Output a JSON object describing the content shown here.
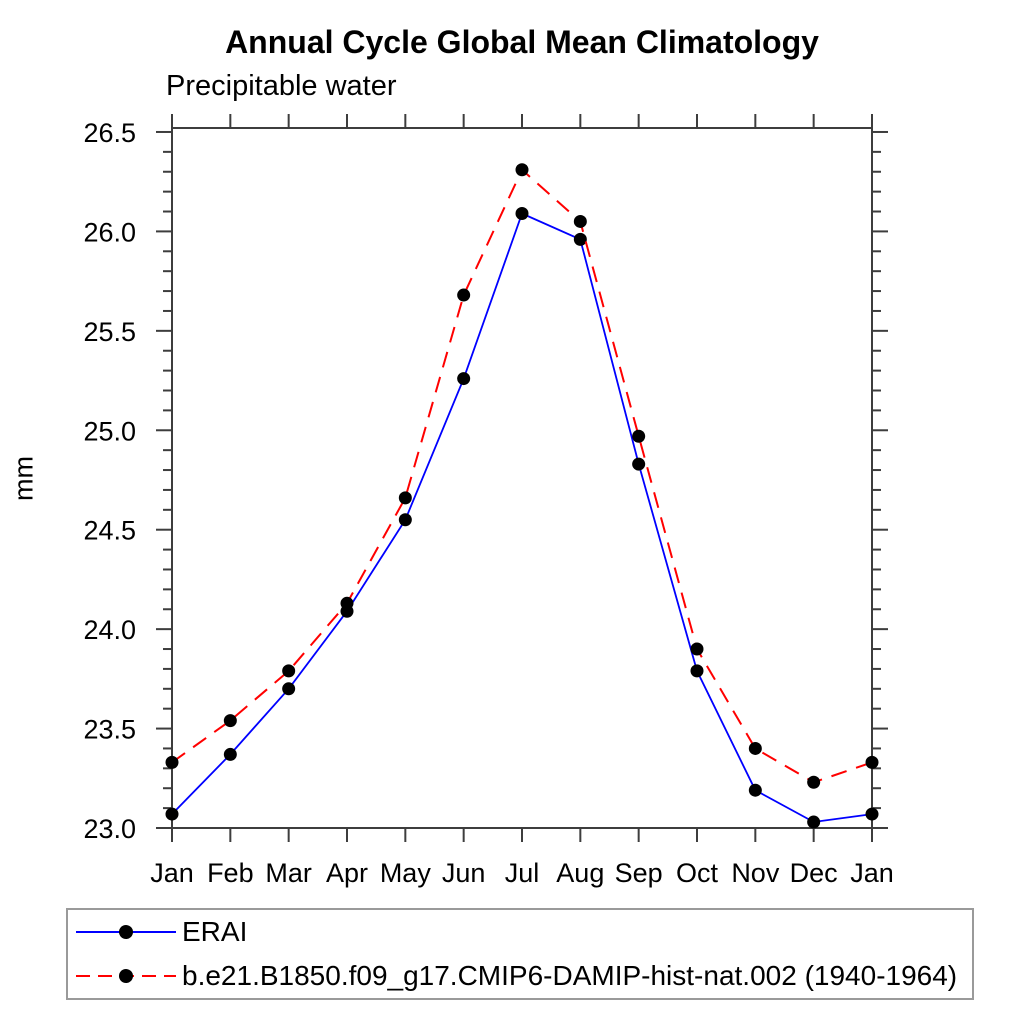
{
  "title": "Annual Cycle Global Mean Climatology",
  "subtitle": "Precipitable water",
  "chart_data": {
    "type": "line",
    "title": "Annual Cycle Global Mean Climatology",
    "subtitle": "Precipitable water",
    "ylabel": "mm",
    "xlabel": "",
    "categories": [
      "Jan",
      "Feb",
      "Mar",
      "Apr",
      "May",
      "Jun",
      "Jul",
      "Aug",
      "Sep",
      "Oct",
      "Nov",
      "Dec",
      "Jan"
    ],
    "series": [
      {
        "name": "ERAI",
        "color": "#0000ff",
        "line_style": "solid",
        "marker": "black-dot",
        "values": [
          23.07,
          23.37,
          23.7,
          24.09,
          24.55,
          25.26,
          26.09,
          25.96,
          24.83,
          23.79,
          23.19,
          23.03,
          23.07
        ]
      },
      {
        "name": "b.e21.B1850.f09_g17.CMIP6-DAMIP-hist-nat.002 (1940-1964)",
        "color": "#ff0000",
        "line_style": "dashed",
        "marker": "black-dot",
        "values": [
          23.33,
          23.54,
          23.79,
          24.13,
          24.66,
          25.68,
          26.31,
          26.05,
          24.97,
          23.9,
          23.4,
          23.23,
          23.33
        ]
      }
    ],
    "marker_color": "#000000",
    "ylim": [
      23.0,
      26.52
    ],
    "ytick_major": 0.5,
    "ytick_minor": 0.1,
    "grid": false,
    "legend_position": "bottom"
  }
}
